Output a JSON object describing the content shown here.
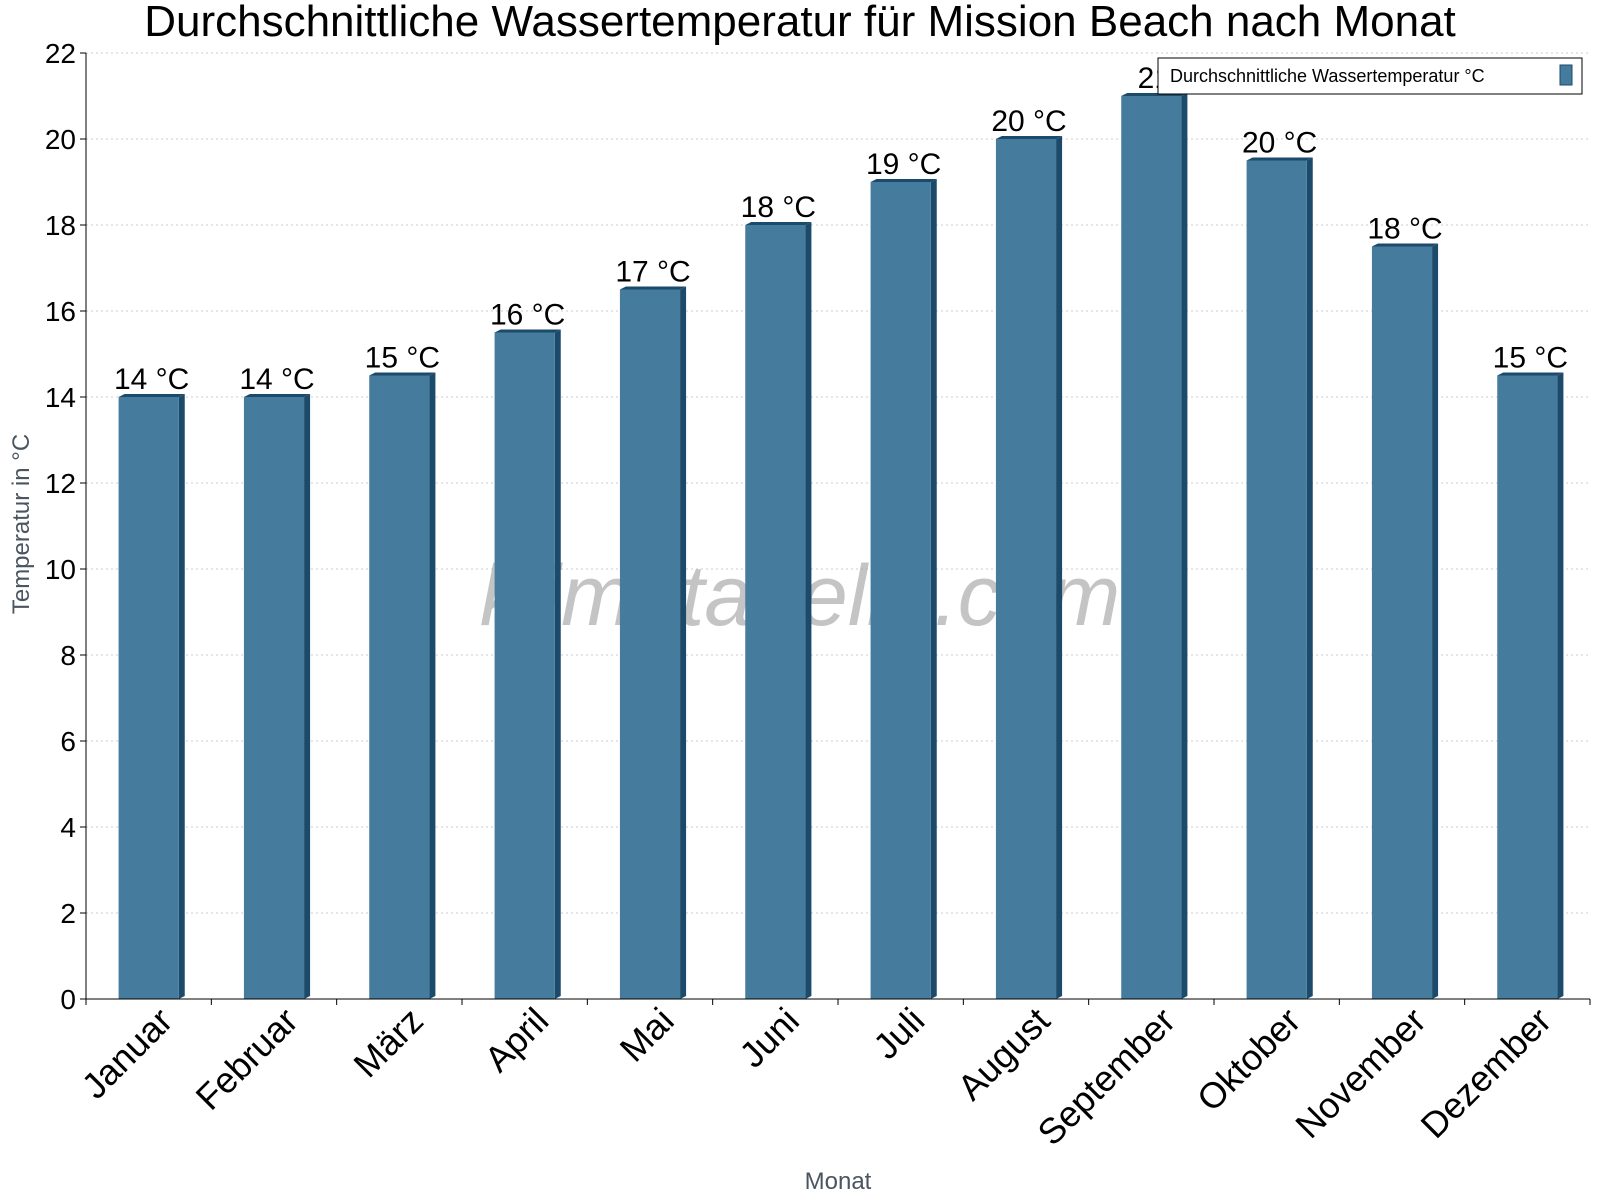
{
  "chart_data": {
    "type": "bar",
    "title": "Durchschnittliche Wassertemperatur für Mission Beach nach Monat",
    "xlabel": "Monat",
    "ylabel": "Temperatur in °C",
    "ylim": [
      0,
      22
    ],
    "yticks": [
      0,
      2,
      4,
      6,
      8,
      10,
      12,
      14,
      16,
      18,
      20,
      22
    ],
    "grid": true,
    "legend_position": "top-right",
    "categories": [
      "Januar",
      "Februar",
      "März",
      "April",
      "Mai",
      "Juni",
      "Juli",
      "August",
      "September",
      "Oktober",
      "November",
      "Dezember"
    ],
    "series": [
      {
        "name": "Durchschnittliche Wassertemperatur °C",
        "color": "#457b9d",
        "values": [
          14,
          14,
          14.5,
          15.5,
          16.5,
          18,
          19,
          20,
          21,
          19.5,
          17.5,
          14.5
        ],
        "labels": [
          "14 °C",
          "14 °C",
          "15 °C",
          "16 °C",
          "17 °C",
          "18 °C",
          "19 °C",
          "20 °C",
          "21",
          "20 °C",
          "18 °C",
          "15 °C"
        ]
      }
    ]
  },
  "watermark": "klimatabelle.com",
  "colors": {
    "bar": "#457b9d",
    "bar_shade": "#1c4a6b",
    "grid": "#cccccc"
  }
}
